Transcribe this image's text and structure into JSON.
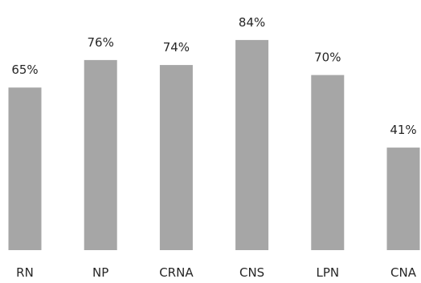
{
  "chart_data": {
    "type": "bar",
    "categories": [
      "RN",
      "NP",
      "CRNA",
      "CNS",
      "LPN",
      "CNA"
    ],
    "values": [
      65,
      76,
      74,
      84,
      70,
      41
    ],
    "data_labels": [
      "65%",
      "76%",
      "74%",
      "84%",
      "70%",
      "41%"
    ],
    "ylim": [
      0,
      100
    ],
    "grid": false,
    "legend": "none",
    "bar_color": "#a6a6a6",
    "text_color": "#262626"
  }
}
